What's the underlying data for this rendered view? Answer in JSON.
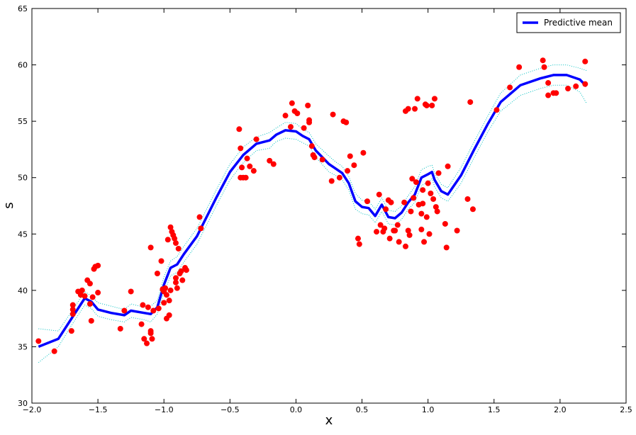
{
  "chart_data": {
    "type": "line",
    "xlabel": "x",
    "ylabel": "s",
    "xlim": [
      -2,
      2.5
    ],
    "ylim": [
      30,
      65
    ],
    "xticks": [
      {
        "value": -2,
        "label": "−2.0"
      },
      {
        "value": -1.5,
        "label": "−1.5"
      },
      {
        "value": -1,
        "label": "−1.0"
      },
      {
        "value": -0.5,
        "label": "−0.5"
      },
      {
        "value": 0,
        "label": "0.0"
      },
      0.5,
      {
        "value": 1,
        "label": "1.0"
      },
      1.5,
      {
        "value": 2,
        "label": "2.0"
      },
      2.5
    ],
    "yticks": [
      30,
      35,
      40,
      45,
      50,
      55,
      60,
      65
    ],
    "legend": "upper right",
    "x": [
      -1.95,
      -1.8,
      -1.7,
      -1.6,
      -1.55,
      -1.5,
      -1.4,
      -1.3,
      -1.25,
      -1.15,
      -1.1,
      -1.05,
      -1.0,
      -0.95,
      -0.9,
      -0.85,
      -0.75,
      -0.6,
      -0.5,
      -0.4,
      -0.3,
      -0.2,
      -0.15,
      -0.08,
      0,
      0.05,
      0.1,
      0.15,
      0.25,
      0.3,
      0.35,
      0.4,
      0.45,
      0.5,
      0.55,
      0.6,
      0.65,
      0.7,
      0.75,
      0.8,
      0.85,
      0.9,
      0.95,
      1.0,
      1.03,
      1.05,
      1.1,
      1.15,
      1.25,
      1.35,
      1.45,
      1.55,
      1.7,
      1.85,
      1.95,
      2.05,
      2.15,
      2.2
    ],
    "series": [
      {
        "color": "#00bfbf",
        "linestyle": "dotted",
        "values": [
          36.6,
          36.4,
          38.1,
          39.9,
          39.5,
          38.9,
          38.6,
          38.3,
          38.8,
          38.5,
          38.6,
          39.1,
          41.2,
          42.6,
          43.0,
          43.9,
          45.5,
          49.0,
          51.2,
          52.7,
          53.6,
          54.0,
          54.4,
          54.9,
          54.8,
          54.3,
          54.0,
          53.0,
          51.9,
          51.4,
          51.0,
          50.1,
          48.6,
          48.0,
          47.9,
          47.2,
          48.2,
          47.1,
          47.0,
          47.5,
          48.4,
          49.2,
          50.7,
          51.0,
          51.1,
          50.4,
          49.4,
          49.1,
          50.9,
          53.2,
          55.4,
          57.5,
          59.1,
          59.7,
          60.0,
          60.0,
          59.7,
          59.5
        ]
      },
      {
        "color": "#00bfbf",
        "linestyle": "dotted",
        "values": [
          33.6,
          35.0,
          36.9,
          38.7,
          38.4,
          37.7,
          37.4,
          37.2,
          37.6,
          37.4,
          37.2,
          37.9,
          39.8,
          41.3,
          41.6,
          42.5,
          44.1,
          47.6,
          49.8,
          51.3,
          52.4,
          52.6,
          53.2,
          53.5,
          53.4,
          53.1,
          52.8,
          51.8,
          50.5,
          50.2,
          49.8,
          48.9,
          47.2,
          46.8,
          46.7,
          46.0,
          47.0,
          45.9,
          45.8,
          46.3,
          47.2,
          47.8,
          49.3,
          49.6,
          49.9,
          49.2,
          48.2,
          47.9,
          49.5,
          51.8,
          54.0,
          55.9,
          57.3,
          57.9,
          58.2,
          58.2,
          57.6,
          56.6
        ]
      },
      {
        "name": "Predictive mean",
        "color": "#0000ff",
        "linestyle": "solid",
        "values": [
          35.0,
          35.7,
          37.5,
          39.3,
          39.0,
          38.3,
          38.0,
          37.8,
          38.2,
          38.0,
          37.9,
          38.5,
          40.5,
          42.0,
          42.3,
          43.2,
          44.8,
          48.3,
          50.5,
          52.0,
          53.0,
          53.3,
          53.8,
          54.2,
          54.1,
          53.7,
          53.4,
          52.4,
          51.2,
          50.8,
          50.4,
          49.5,
          47.9,
          47.4,
          47.3,
          46.6,
          47.6,
          46.5,
          46.4,
          46.9,
          47.8,
          48.5,
          50.0,
          50.3,
          50.5,
          49.8,
          48.8,
          48.5,
          50.2,
          52.5,
          54.7,
          56.7,
          58.2,
          58.8,
          59.1,
          59.1,
          58.7,
          58.1
        ]
      }
    ],
    "scatter": {
      "color": "#ff0000",
      "x": [
        -1.95,
        -1.83,
        -1.7,
        -1.69,
        -1.69,
        -1.69,
        -1.65,
        -1.63,
        -1.62,
        -1.6,
        -1.58,
        -1.56,
        -1.56,
        -1.55,
        -1.54,
        -1.53,
        -1.52,
        -1.5,
        -1.5,
        -1.33,
        -1.3,
        -1.25,
        -1.17,
        -1.16,
        -1.15,
        -1.13,
        -1.12,
        -1.1,
        -1.1,
        -1.09,
        -1.1,
        -1.08,
        -1.05,
        -1.04,
        -1.02,
        -1.01,
        -1.0,
        -1.0,
        -0.99,
        -0.98,
        -0.98,
        -0.97,
        -0.96,
        -0.96,
        -0.95,
        -0.95,
        -0.94,
        -0.93,
        -0.92,
        -0.91,
        -0.91,
        -0.91,
        -0.9,
        -0.89,
        -0.88,
        -0.87,
        -0.86,
        -0.84,
        -0.83,
        -0.73,
        -0.72,
        -0.43,
        -0.42,
        -0.42,
        -0.41,
        -0.4,
        -0.38,
        -0.37,
        -0.35,
        -0.32,
        -0.3,
        -0.2,
        -0.17,
        -0.08,
        -0.04,
        -0.03,
        -0.01,
        0.01,
        0.06,
        0.09,
        0.1,
        0.1,
        0.12,
        0.13,
        0.14,
        0.2,
        0.27,
        0.28,
        0.33,
        0.36,
        0.38,
        0.39,
        0.41,
        0.44,
        0.47,
        0.48,
        0.51,
        0.54,
        0.61,
        0.63,
        0.64,
        0.66,
        0.67,
        0.68,
        0.7,
        0.71,
        0.72,
        0.74,
        0.75,
        0.77,
        0.78,
        0.82,
        0.83,
        0.83,
        0.85,
        0.85,
        0.86,
        0.87,
        0.88,
        0.89,
        0.9,
        0.91,
        0.92,
        0.93,
        0.95,
        0.95,
        0.96,
        0.96,
        0.97,
        0.98,
        0.99,
        0.99,
        1.0,
        1.01,
        1.02,
        1.03,
        1.04,
        1.05,
        1.06,
        1.07,
        1.08,
        1.13,
        1.14,
        1.15,
        1.22,
        1.3,
        1.32,
        1.34,
        1.52,
        1.62,
        1.69,
        1.87,
        1.88,
        1.91,
        1.91,
        1.95,
        1.97,
        2.06,
        2.12,
        2.19,
        2.19
      ],
      "values": [
        35.5,
        34.6,
        36.4,
        37.9,
        38.3,
        38.7,
        39.9,
        39.6,
        40.0,
        39.5,
        40.9,
        40.6,
        38.8,
        37.3,
        39.4,
        41.9,
        42.1,
        42.2,
        39.8,
        36.6,
        38.2,
        39.9,
        37.0,
        38.7,
        35.7,
        35.3,
        38.5,
        36.4,
        36.2,
        35.7,
        43.8,
        38.2,
        41.5,
        38.4,
        42.6,
        40.1,
        39.9,
        38.9,
        40.2,
        39.6,
        37.5,
        44.5,
        39.1,
        37.8,
        40.0,
        45.6,
        45.2,
        44.9,
        44.6,
        44.2,
        41.1,
        40.7,
        40.2,
        43.7,
        41.5,
        41.7,
        40.9,
        42.0,
        41.8,
        46.5,
        45.5,
        54.3,
        52.6,
        50.0,
        50.9,
        50.0,
        50.0,
        51.7,
        51.0,
        50.6,
        53.4,
        51.5,
        51.2,
        55.5,
        54.5,
        56.6,
        55.9,
        55.7,
        54.4,
        56.4,
        55.1,
        54.9,
        52.8,
        52.0,
        51.8,
        51.6,
        49.7,
        55.6,
        50.0,
        55.0,
        54.9,
        50.6,
        51.9,
        51.1,
        44.6,
        44.1,
        52.2,
        47.9,
        45.2,
        48.5,
        45.8,
        45.2,
        45.5,
        47.2,
        48.0,
        44.6,
        47.8,
        45.3,
        45.3,
        45.8,
        44.3,
        47.8,
        43.9,
        55.9,
        56.1,
        45.3,
        44.9,
        47.0,
        49.9,
        48.2,
        56.1,
        49.6,
        57.0,
        47.6,
        45.4,
        46.8,
        47.7,
        48.9,
        44.3,
        56.5,
        56.4,
        46.5,
        49.5,
        45.0,
        48.6,
        56.4,
        48.1,
        57.0,
        47.4,
        47.0,
        50.4,
        45.9,
        43.8,
        51.0,
        45.3,
        48.1,
        56.7,
        47.2,
        56.0,
        58.0,
        59.8,
        60.4,
        59.8,
        58.4,
        57.3,
        57.5,
        57.5,
        57.9,
        58.1,
        60.3,
        58.3
      ]
    }
  }
}
